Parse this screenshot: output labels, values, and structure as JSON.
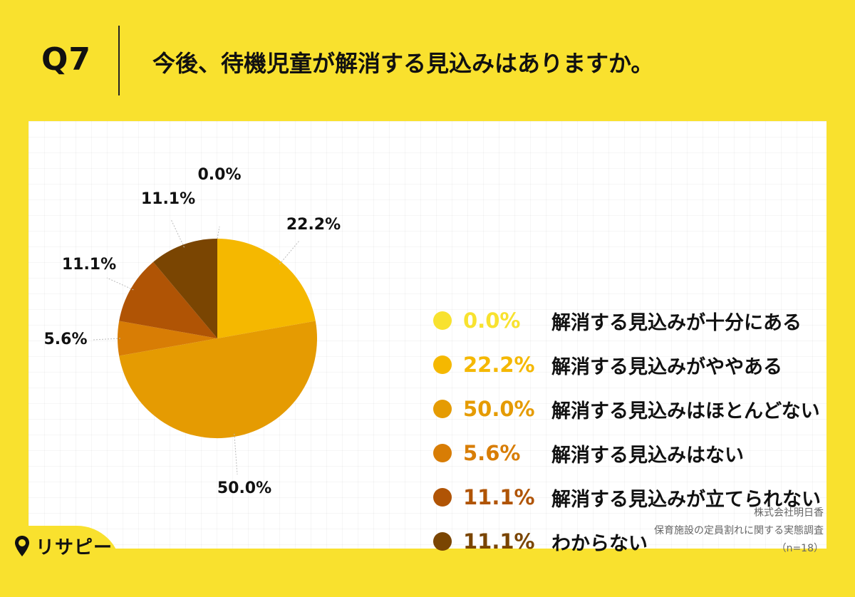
{
  "header": {
    "q_number": "Q7",
    "question": "今後、待機児童が解消する見込みはありますか。"
  },
  "chart_data": {
    "type": "pie",
    "title": "今後、待機児童が解消する見込みはありますか。",
    "slices": [
      {
        "label": "解消する見込みが十分にある",
        "value": 0.0,
        "display": "0.0%",
        "color": "#f8e22f"
      },
      {
        "label": "解消する見込みがややある",
        "value": 22.2,
        "display": "22.2%",
        "color": "#f5b800"
      },
      {
        "label": "解消する見込みはほとんどない",
        "value": 50.0,
        "display": "50.0%",
        "color": "#e59b02"
      },
      {
        "label": "解消する見込みはない",
        "value": 5.6,
        "display": "5.6%",
        "color": "#d87d05"
      },
      {
        "label": "解消する見込みが立てられない",
        "value": 11.1,
        "display": "11.1%",
        "color": "#b05405"
      },
      {
        "label": "わからない",
        "value": 11.1,
        "display": "11.1%",
        "color": "#7a4502"
      }
    ],
    "start_angle_deg": 0,
    "direction": "clockwise"
  },
  "footer": {
    "company": "株式会社明日香",
    "survey": "保育施設の定員割れに関する実態調査",
    "n": "（n=18）"
  },
  "logo": {
    "text": "リサピー",
    "icon": "map-pin-icon"
  },
  "colors": {
    "background": "#f9e12e",
    "panel": "#ffffff"
  }
}
